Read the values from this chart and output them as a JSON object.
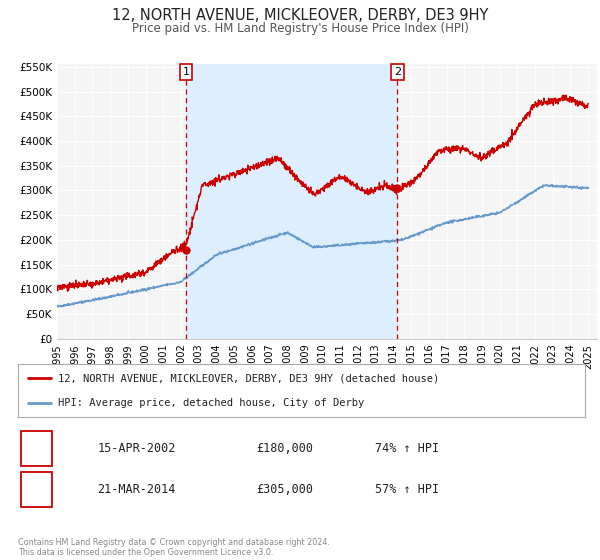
{
  "title": "12, NORTH AVENUE, MICKLEOVER, DERBY, DE3 9HY",
  "subtitle": "Price paid vs. HM Land Registry's House Price Index (HPI)",
  "title_fontsize": 11,
  "subtitle_fontsize": 9,
  "bg_color": "#ffffff",
  "plot_bg_color": "#f5f5f5",
  "grid_color": "#ffffff",
  "x_start": 1995.0,
  "x_end": 2025.5,
  "y_min": 0,
  "y_max": 550000,
  "y_ticks": [
    0,
    50000,
    100000,
    150000,
    200000,
    250000,
    300000,
    350000,
    400000,
    450000,
    500000,
    550000
  ],
  "y_tick_labels": [
    "£0",
    "£50K",
    "£100K",
    "£150K",
    "£200K",
    "£250K",
    "£300K",
    "£350K",
    "£400K",
    "£450K",
    "£500K",
    "£550K"
  ],
  "x_ticks": [
    1995,
    1996,
    1997,
    1998,
    1999,
    2000,
    2001,
    2002,
    2003,
    2004,
    2005,
    2006,
    2007,
    2008,
    2009,
    2010,
    2011,
    2012,
    2013,
    2014,
    2015,
    2016,
    2017,
    2018,
    2019,
    2020,
    2021,
    2022,
    2023,
    2024,
    2025
  ],
  "transaction1_x": 2002.29,
  "transaction1_y": 180000,
  "transaction1_label": "1",
  "transaction1_date": "15-APR-2002",
  "transaction1_price": "£180,000",
  "transaction1_hpi": "74% ↑ HPI",
  "transaction2_x": 2014.22,
  "transaction2_y": 305000,
  "transaction2_label": "2",
  "transaction2_date": "21-MAR-2014",
  "transaction2_price": "£305,000",
  "transaction2_hpi": "57% ↑ HPI",
  "red_line_color": "#cc0000",
  "blue_line_color": "#6699cc",
  "shaded_region_color": "#ddeeff",
  "legend_label_red": "12, NORTH AVENUE, MICKLEOVER, DERBY, DE3 9HY (detached house)",
  "legend_label_blue": "HPI: Average price, detached house, City of Derby",
  "footer_text": "Contains HM Land Registry data © Crown copyright and database right 2024.\nThis data is licensed under the Open Government Licence v3.0.",
  "dashed_line_color": "#cc0000"
}
